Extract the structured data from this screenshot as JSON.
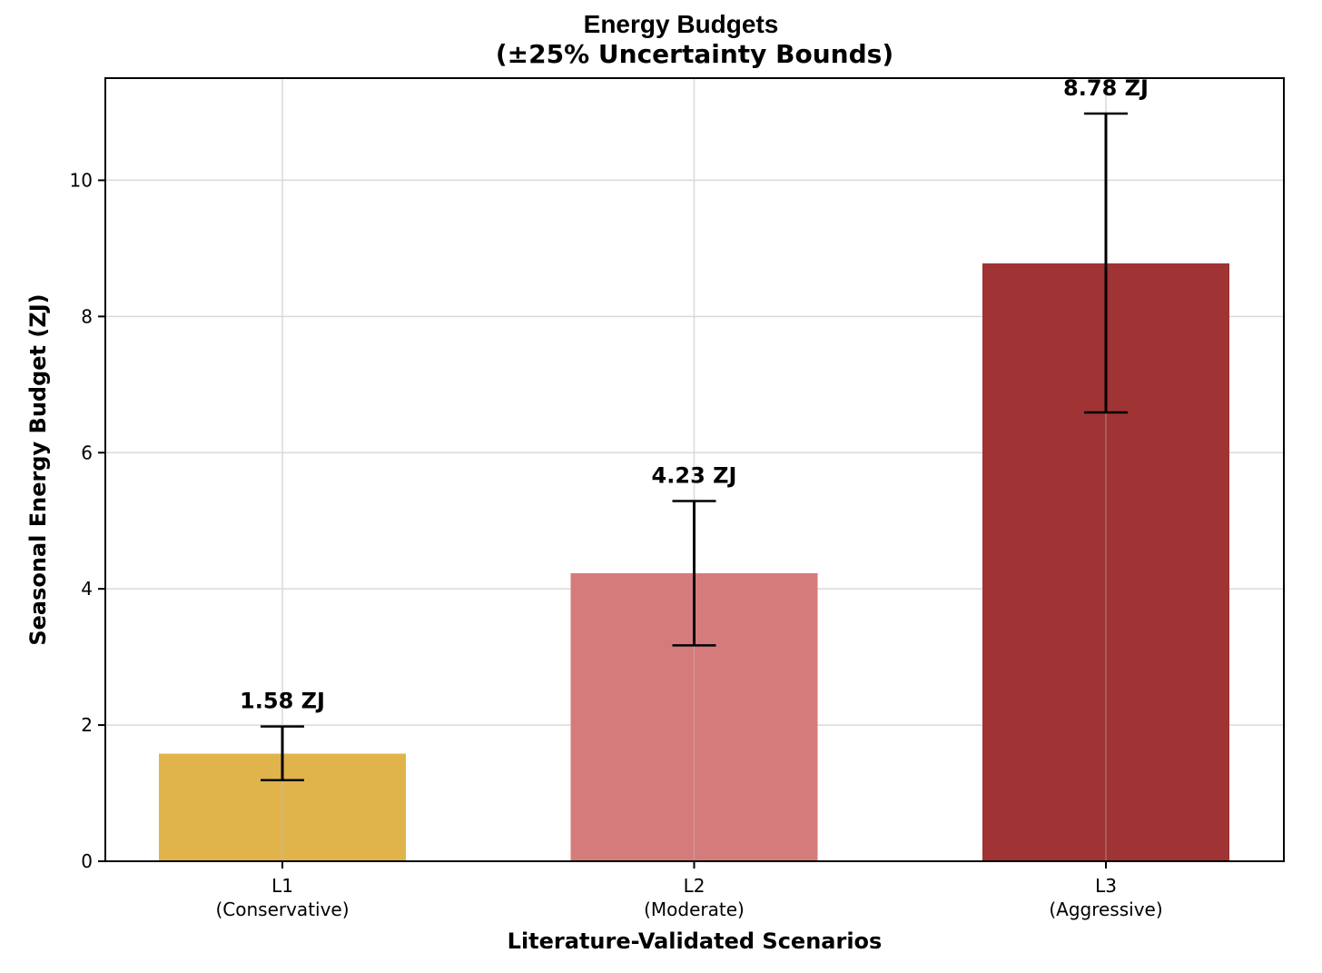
{
  "chart_data": {
    "type": "bar",
    "title": "Energy Budgets",
    "subtitle": "(±25% Uncertainty Bounds)",
    "xlabel": "Literature-Validated Scenarios",
    "ylabel": "Seasonal Energy Budget (ZJ)",
    "categories": [
      "L1\n(Conservative)",
      "L2\n(Moderate)",
      "L3\n(Aggressive)"
    ],
    "values": [
      1.58,
      4.23,
      8.78
    ],
    "error_lower": [
      1.19,
      3.17,
      6.59
    ],
    "error_upper": [
      1.98,
      5.29,
      10.98
    ],
    "data_labels": [
      "1.58 ZJ",
      "4.23 ZJ",
      "8.78 ZJ"
    ],
    "colors": [
      "#e0b44b",
      "#d67b7b",
      "#a03333"
    ],
    "ylim": [
      0,
      11.5
    ],
    "yticks": [
      0,
      2,
      4,
      6,
      8,
      10
    ],
    "grid": true
  }
}
